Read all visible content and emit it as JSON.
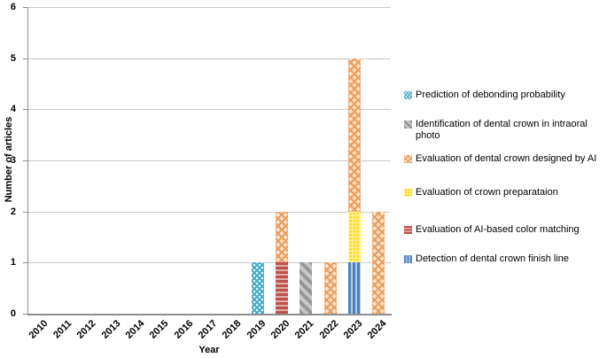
{
  "chart_data": {
    "type": "bar",
    "stacked": true,
    "title": "",
    "xlabel": "Year",
    "ylabel": "Number of articles",
    "ylim": [
      0,
      6
    ],
    "yticks": [
      0,
      1,
      2,
      3,
      4,
      5,
      6
    ],
    "grid": "horizontal",
    "legend_position": "right",
    "categories": [
      "2010",
      "2011",
      "2012",
      "2013",
      "2014",
      "2015",
      "2016",
      "2017",
      "2018",
      "2019",
      "2020",
      "2021",
      "2022",
      "2023",
      "2024"
    ],
    "series": [
      {
        "key": "debonding",
        "name": "Prediction of debonding probability",
        "color": "#4bacc6",
        "pattern": "dotted",
        "values": [
          0,
          0,
          0,
          0,
          0,
          0,
          0,
          0,
          0,
          1,
          0,
          0,
          0,
          0,
          0
        ]
      },
      {
        "key": "identification",
        "name": "Identification of dental crown in intraoral photo",
        "color": "#a6a6a6",
        "pattern": "diagonal-stripes",
        "values": [
          0,
          0,
          0,
          0,
          0,
          0,
          0,
          0,
          0,
          0,
          0,
          1,
          0,
          0,
          0
        ]
      },
      {
        "key": "designed_by_ai",
        "name": "Evaluation of dental crown designed by AI",
        "color": "#f79646",
        "pattern": "diagonal-crosshatch",
        "values": [
          0,
          0,
          0,
          0,
          0,
          0,
          0,
          0,
          0,
          0,
          1,
          0,
          1,
          3,
          2
        ]
      },
      {
        "key": "preparation",
        "name": "Evaluation of crown preparataion",
        "color": "#ffd700",
        "pattern": "small-grid",
        "values": [
          0,
          0,
          0,
          0,
          0,
          0,
          0,
          0,
          0,
          0,
          0,
          0,
          0,
          1,
          0
        ]
      },
      {
        "key": "color_matching",
        "name": "Evaluation of AI-based color matching",
        "color": "#c0504d",
        "pattern": "horizontal-stripes",
        "values": [
          0,
          0,
          0,
          0,
          0,
          0,
          0,
          0,
          0,
          0,
          1,
          0,
          0,
          0,
          0
        ]
      },
      {
        "key": "finish_line",
        "name": "Detection of dental crown finish line",
        "color": "#4f81bd",
        "pattern": "vertical-stripes",
        "values": [
          0,
          0,
          0,
          0,
          0,
          0,
          0,
          0,
          0,
          0,
          0,
          0,
          0,
          1,
          0
        ]
      }
    ],
    "stack_order_bottom_to_top": [
      "finish_line",
      "color_matching",
      "preparation",
      "designed_by_ai",
      "identification",
      "debonding"
    ]
  },
  "styles": {
    "gridline_color": "#c9c9c9",
    "axis_color": "#8c8c8c",
    "text_color": "#000000"
  }
}
